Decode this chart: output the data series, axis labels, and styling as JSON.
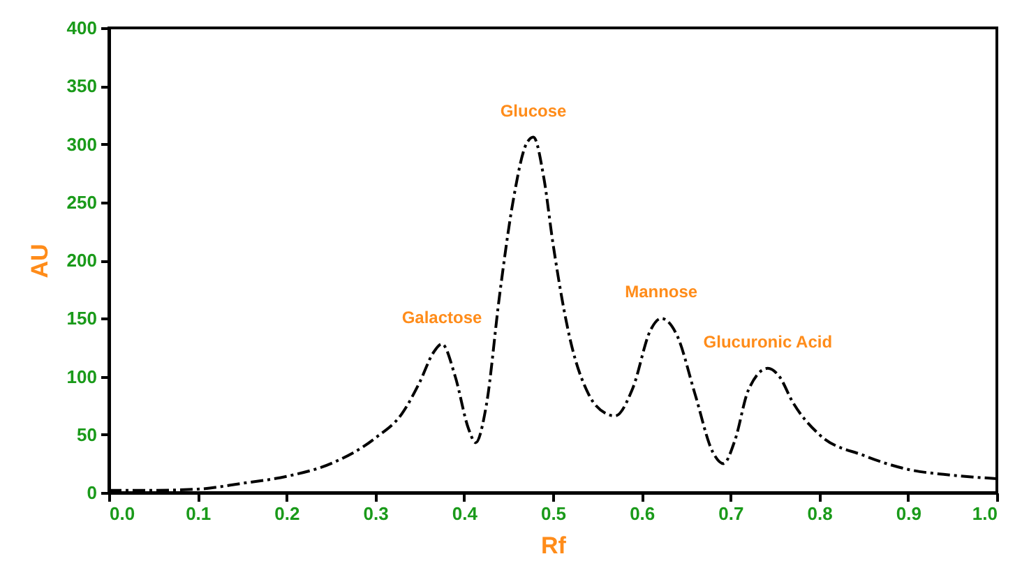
{
  "chart_data": {
    "type": "line",
    "xlabel": "Rf",
    "ylabel": "AU",
    "x": [
      0,
      0.05,
      0.1,
      0.15,
      0.2,
      0.25,
      0.3,
      0.33,
      0.35,
      0.365,
      0.375,
      0.39,
      0.405,
      0.413,
      0.425,
      0.44,
      0.455,
      0.47,
      0.478,
      0.49,
      0.5,
      0.52,
      0.54,
      0.56,
      0.57,
      0.59,
      0.61,
      0.622,
      0.64,
      0.66,
      0.68,
      0.692,
      0.705,
      0.72,
      0.742,
      0.755,
      0.77,
      0.8,
      0.85,
      0.9,
      0.95,
      1.0
    ],
    "series": [
      {
        "color": "#000000",
        "values": [
          2,
          2,
          3,
          8,
          14,
          25,
          47,
          68,
          95,
          120,
          128,
          100,
          55,
          43,
          75,
          170,
          250,
          300,
          306,
          270,
          215,
          130,
          85,
          68,
          66,
          90,
          140,
          150,
          135,
          85,
          35,
          25,
          45,
          88,
          107,
          100,
          78,
          50,
          32,
          20,
          15,
          12
        ]
      }
    ],
    "xlim": [
      0,
      1
    ],
    "xticks": [
      {
        "value": 0,
        "label": "0.0"
      },
      0.1,
      0.2,
      0.3,
      0.4,
      0.5,
      0.6,
      0.7,
      0.8,
      0.9,
      {
        "value": 1,
        "label": "1.0"
      }
    ],
    "ylim": [
      0,
      400
    ],
    "yticks": [
      0,
      50,
      100,
      150,
      200,
      250,
      300,
      350,
      400
    ],
    "annotations": [
      {
        "text": "Galactose",
        "x": 0.375,
        "y": 128
      },
      {
        "text": "Glucose",
        "x": 0.478,
        "y": 306
      },
      {
        "text": "Mannose",
        "x": 0.622,
        "y": 150
      },
      {
        "text": "Glucuronic Acid",
        "x": 0.742,
        "y": 107
      }
    ],
    "grid": false,
    "marker": "none",
    "line_style": "dashed"
  }
}
